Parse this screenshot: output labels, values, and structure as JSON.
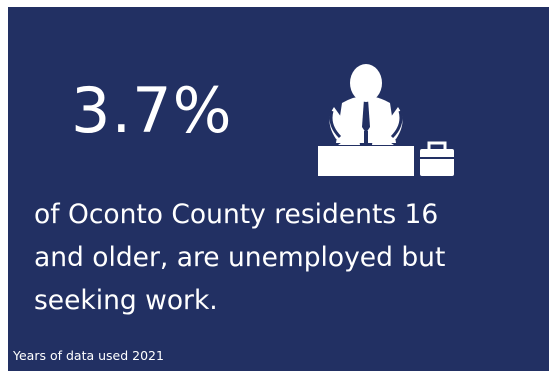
{
  "infographic": {
    "statistic": "3.7%",
    "icon": "unemployed-person-with-briefcase-icon",
    "description": " of Oconto County residents 16\nand older, are unemployed but\nseeking work.",
    "footnote": "Years of data used 2021"
  },
  "colors": {
    "background": "#223063",
    "text": "#ffffff",
    "border": "#ffffff"
  }
}
